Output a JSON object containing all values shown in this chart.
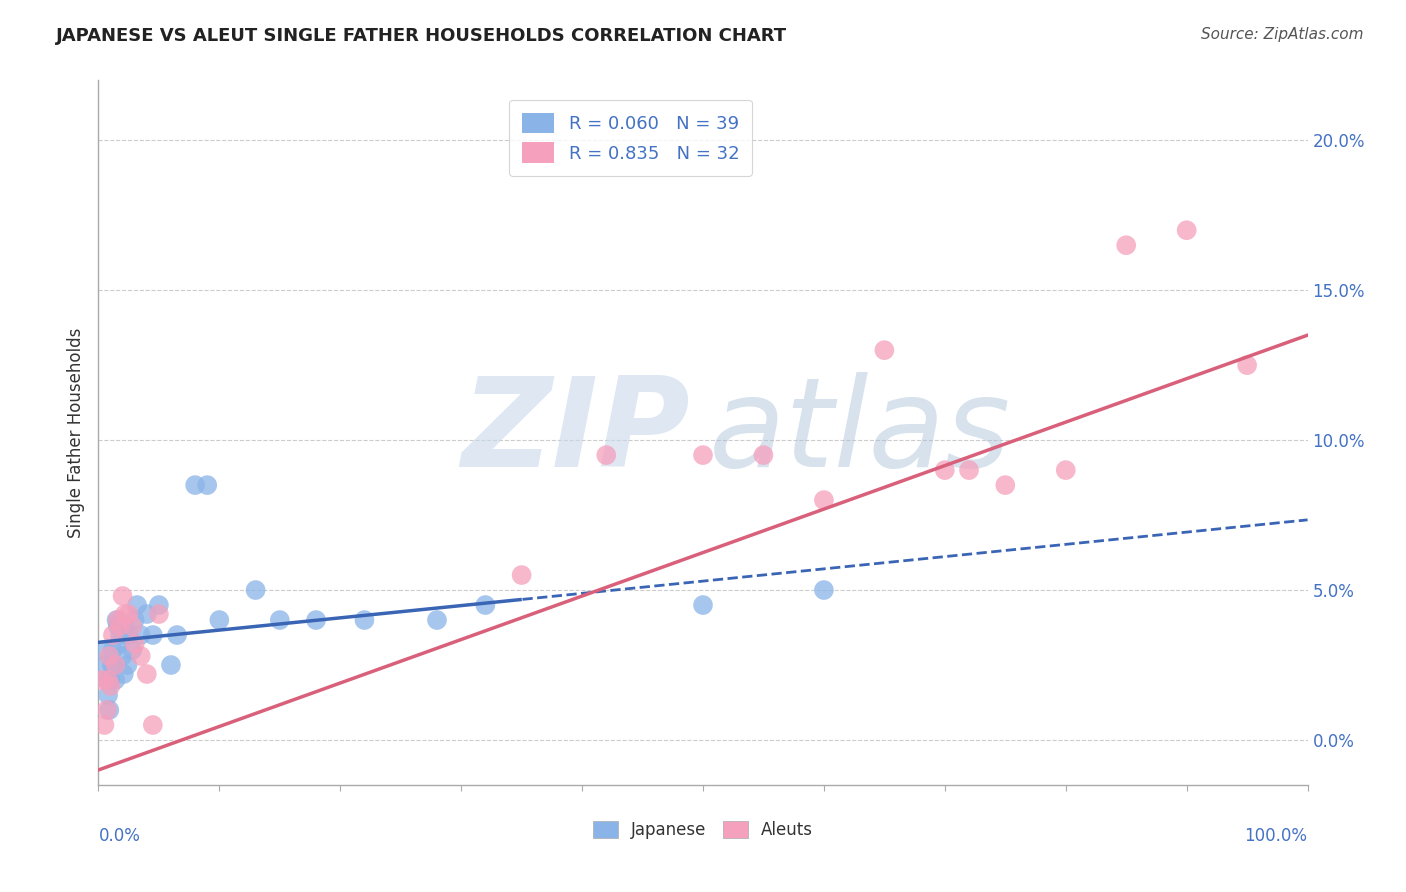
{
  "title": "JAPANESE VS ALEUT SINGLE FATHER HOUSEHOLDS CORRELATION CHART",
  "source": "Source: ZipAtlas.com",
  "ylabel": "Single Father Households",
  "xlim": [
    0.0,
    1.0
  ],
  "ylim": [
    -0.015,
    0.22
  ],
  "yticks": [
    0.0,
    0.05,
    0.1,
    0.15,
    0.2
  ],
  "ytick_labels": [
    "0.0%",
    "5.0%",
    "10.0%",
    "15.0%",
    "20.0%"
  ],
  "xtick_labels": [
    "0.0%",
    "100.0%"
  ],
  "legend_r_japanese": "R = 0.060",
  "legend_n_japanese": "N = 39",
  "legend_r_aleuts": "R = 0.835",
  "legend_n_aleuts": "N = 32",
  "japanese_color": "#8ab4e8",
  "aleuts_color": "#f5a0bc",
  "trendline_japanese_color": "#3a65b5",
  "trendline_aleuts_color": "#d9607a",
  "japanese_scatter": {
    "x": [
      0.004,
      0.006,
      0.007,
      0.008,
      0.009,
      0.01,
      0.011,
      0.012,
      0.013,
      0.014,
      0.015,
      0.016,
      0.017,
      0.018,
      0.02,
      0.021,
      0.022,
      0.024,
      0.025,
      0.028,
      0.03,
      0.032,
      0.035,
      0.04,
      0.045,
      0.05,
      0.06,
      0.065,
      0.08,
      0.09,
      0.1,
      0.13,
      0.15,
      0.18,
      0.22,
      0.28,
      0.32,
      0.5,
      0.6
    ],
    "y": [
      0.03,
      0.025,
      0.02,
      0.015,
      0.01,
      0.02,
      0.025,
      0.03,
      0.025,
      0.02,
      0.04,
      0.038,
      0.032,
      0.035,
      0.028,
      0.022,
      0.038,
      0.025,
      0.035,
      0.03,
      0.04,
      0.045,
      0.035,
      0.042,
      0.035,
      0.045,
      0.025,
      0.035,
      0.085,
      0.085,
      0.04,
      0.05,
      0.04,
      0.04,
      0.04,
      0.04,
      0.045,
      0.045,
      0.05
    ]
  },
  "aleuts_scatter": {
    "x": [
      0.003,
      0.005,
      0.007,
      0.008,
      0.009,
      0.01,
      0.012,
      0.014,
      0.016,
      0.018,
      0.02,
      0.022,
      0.025,
      0.028,
      0.03,
      0.035,
      0.04,
      0.045,
      0.05,
      0.35,
      0.42,
      0.5,
      0.55,
      0.6,
      0.65,
      0.7,
      0.72,
      0.75,
      0.8,
      0.85,
      0.9,
      0.95
    ],
    "y": [
      0.02,
      0.005,
      0.01,
      0.02,
      0.028,
      0.018,
      0.035,
      0.025,
      0.04,
      0.038,
      0.048,
      0.042,
      0.042,
      0.038,
      0.032,
      0.028,
      0.022,
      0.005,
      0.042,
      0.055,
      0.095,
      0.095,
      0.095,
      0.08,
      0.13,
      0.09,
      0.09,
      0.085,
      0.09,
      0.165,
      0.17,
      0.125
    ]
  },
  "background_color": "#ffffff",
  "watermark_zip": "ZIP",
  "watermark_atlas": "atlas",
  "grid_color": "#cccccc",
  "trendline_solid_end_x": 0.35,
  "trendline_dashed_end_x": 1.0,
  "aleuts_trendline_intercept": -0.01,
  "aleuts_trendline_slope": 0.145
}
